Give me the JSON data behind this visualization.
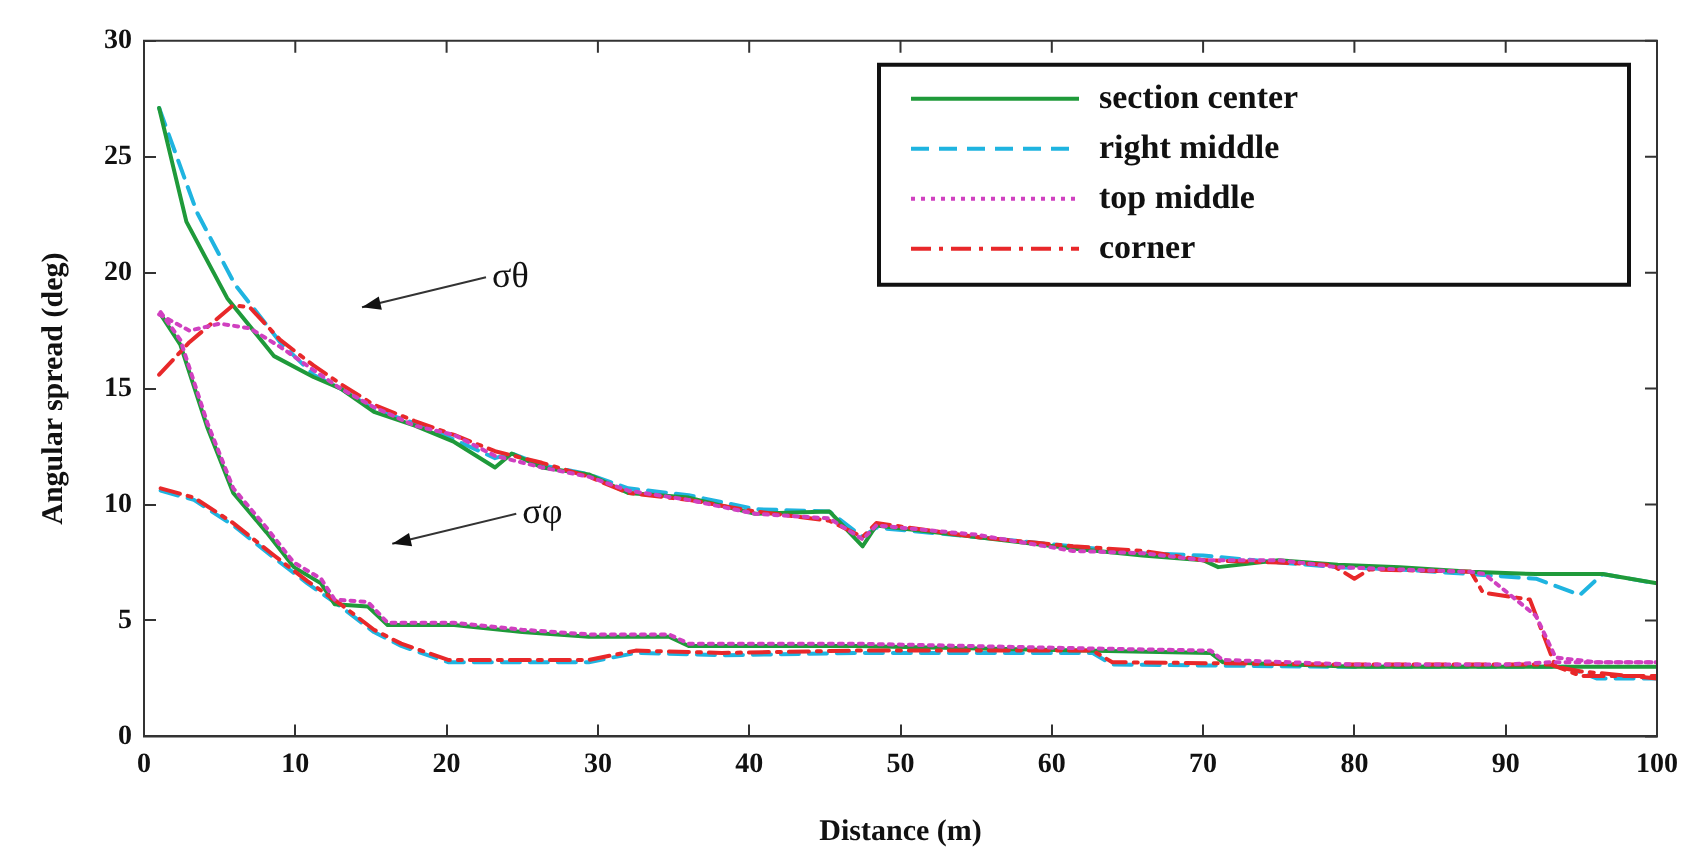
{
  "chart_data": {
    "type": "line",
    "xlabel": "Distance (m)",
    "ylabel": "Angular spread (deg)",
    "xlim": [
      0,
      100
    ],
    "xticks": [
      0,
      10,
      20,
      30,
      40,
      50,
      60,
      70,
      80,
      90,
      100
    ],
    "ylim": [
      0,
      30
    ],
    "yticks": [
      0,
      5,
      10,
      15,
      20,
      25,
      30
    ],
    "grid": false,
    "legend": "top right",
    "marker": "none",
    "annotations": [
      "σθ",
      "σφ"
    ],
    "series": [
      {
        "name": "section center",
        "color": "#1f9a3a",
        "line_style": "solid",
        "x": [
          1,
          2.8,
          5.5,
          8.6,
          11.2,
          13,
          15.2,
          17.9,
          20.5,
          23.2,
          24.3,
          26.3,
          29.4,
          32,
          36,
          40.4,
          45.3,
          47.5,
          48.4,
          55,
          61.4,
          66,
          70,
          71,
          75,
          78.9,
          83,
          87.7,
          92,
          96.4,
          100
        ],
        "values": [
          27.1,
          22.2,
          18.9,
          16.4,
          15.5,
          15,
          14,
          13.4,
          12.7,
          11.6,
          12.2,
          11.6,
          11.3,
          10.5,
          10.3,
          9.6,
          9.7,
          8.2,
          9.1,
          8.6,
          8.1,
          7.8,
          7.6,
          7.3,
          7.6,
          7.4,
          7.3,
          7.1,
          7.0,
          7.0,
          6.6
        ]
      },
      {
        "name": "right middle",
        "color": "#1fb4e0",
        "line_style": "dashed",
        "x": [
          1,
          3.5,
          6,
          9,
          11.2,
          13,
          15.2,
          17.9,
          20.5,
          23.2,
          24.3,
          26.3,
          29.4,
          32,
          36,
          40.4,
          45.3,
          47.5,
          48.4,
          55,
          61.4,
          66,
          70,
          75,
          78.9,
          83,
          87.7,
          92,
          94.9,
          96.4,
          100
        ],
        "values": [
          27.1,
          22.6,
          19.5,
          17,
          15.6,
          15,
          14.1,
          13.5,
          12.8,
          12,
          12.2,
          11.7,
          11.3,
          10.7,
          10.4,
          9.8,
          9.7,
          8.6,
          9.0,
          8.6,
          8.2,
          7.9,
          7.8,
          7.5,
          7.3,
          7.2,
          7.0,
          6.8,
          6.1,
          7.0,
          6.6
        ]
      },
      {
        "name": "top middle",
        "color": "#d040c0",
        "line_style": "dotted",
        "x": [
          1,
          3,
          5,
          7,
          9,
          11.2,
          13,
          15.2,
          17.9,
          20.5,
          23.2,
          26.3,
          29.4,
          32,
          36,
          40.4,
          45.3,
          47.5,
          48.4,
          55,
          61.4,
          66,
          70,
          75,
          78.9,
          83,
          87.7,
          88.6,
          92,
          93.3,
          96,
          100
        ],
        "values": [
          18.2,
          17.5,
          17.8,
          17.6,
          16.8,
          15.8,
          15,
          14.2,
          13.4,
          13,
          12.1,
          11.6,
          11.2,
          10.6,
          10.2,
          9.6,
          9.4,
          8.5,
          9.1,
          8.7,
          8.0,
          7.9,
          7.6,
          7.6,
          7.3,
          7.2,
          7.1,
          7.0,
          5.2,
          3.4,
          3.2,
          3.2
        ]
      },
      {
        "name": "corner",
        "color": "#e8282a",
        "line_style": "dashdot",
        "x": [
          1,
          3,
          5.9,
          7,
          9,
          11.2,
          13,
          15.2,
          17.9,
          20.5,
          23.2,
          26.3,
          29.4,
          32,
          36,
          40.4,
          45.3,
          47.5,
          48.4,
          55,
          61.4,
          66,
          70,
          75,
          78.5,
          80,
          81,
          87.7,
          88.5,
          91.6,
          93.3,
          95,
          100
        ],
        "values": [
          15.6,
          17,
          18.6,
          18.5,
          17.1,
          16,
          15.2,
          14.3,
          13.6,
          13,
          12.3,
          11.8,
          11.2,
          10.5,
          10.2,
          9.7,
          9.3,
          8.6,
          9.2,
          8.6,
          8.2,
          8.0,
          7.6,
          7.5,
          7.4,
          6.8,
          7.2,
          7.1,
          6.2,
          5.9,
          3,
          2.8,
          2.5
        ]
      },
      {
        "color": "#1f9a3a",
        "line_style": "solid",
        "x": [
          1.1,
          2.4,
          4.2,
          5.9,
          8.1,
          9.9,
          11.7,
          12.6,
          14.8,
          16.1,
          20.5,
          25,
          29.4,
          34.7,
          36,
          47,
          62,
          70.5,
          71.3,
          80,
          90,
          95,
          100
        ],
        "values": [
          18.2,
          16.9,
          13.3,
          10.5,
          8.8,
          7.3,
          6.6,
          5.7,
          5.6,
          4.8,
          4.8,
          4.5,
          4.3,
          4.3,
          3.9,
          3.9,
          3.7,
          3.6,
          3.2,
          3.0,
          3.0,
          3.0,
          3.0
        ]
      },
      {
        "color": "#1fb4e0",
        "line_style": "dashed",
        "x": [
          1.1,
          3.3,
          5.9,
          8.6,
          10.8,
          13,
          15.2,
          17,
          20.1,
          29.4,
          32.5,
          38.2,
          47,
          62.7,
          64,
          79,
          90,
          94,
          96,
          100
        ],
        "values": [
          10.6,
          10.2,
          9.1,
          7.7,
          6.6,
          5.6,
          4.5,
          3.9,
          3.2,
          3.2,
          3.6,
          3.5,
          3.6,
          3.6,
          3.1,
          3.0,
          3.0,
          3.0,
          2.5,
          2.5
        ]
      },
      {
        "color": "#d040c0",
        "line_style": "dotted",
        "x": [
          1.1,
          2.4,
          4.2,
          5.9,
          8.1,
          9.9,
          11.7,
          12.6,
          14.8,
          16.1,
          20.5,
          25,
          29.4,
          34.7,
          36,
          47,
          62,
          70.5,
          71.3,
          80,
          90,
          93,
          100
        ],
        "values": [
          18.3,
          17.1,
          13.5,
          10.7,
          9.0,
          7.5,
          6.8,
          5.9,
          5.8,
          4.9,
          4.9,
          4.6,
          4.4,
          4.4,
          4.0,
          4.0,
          3.8,
          3.7,
          3.3,
          3.1,
          3.1,
          3.2,
          3.2
        ]
      },
      {
        "color": "#e8282a",
        "line_style": "dashdot",
        "x": [
          1.1,
          3.3,
          5.9,
          8.6,
          10.8,
          13,
          15.2,
          17,
          20.1,
          29.4,
          32.5,
          38.2,
          47,
          62.7,
          64,
          79,
          90,
          93,
          95,
          100
        ],
        "values": [
          10.7,
          10.3,
          9.2,
          7.8,
          6.7,
          5.7,
          4.6,
          4.0,
          3.3,
          3.3,
          3.7,
          3.6,
          3.7,
          3.7,
          3.2,
          3.1,
          3.1,
          3.1,
          2.6,
          2.6
        ]
      }
    ]
  }
}
